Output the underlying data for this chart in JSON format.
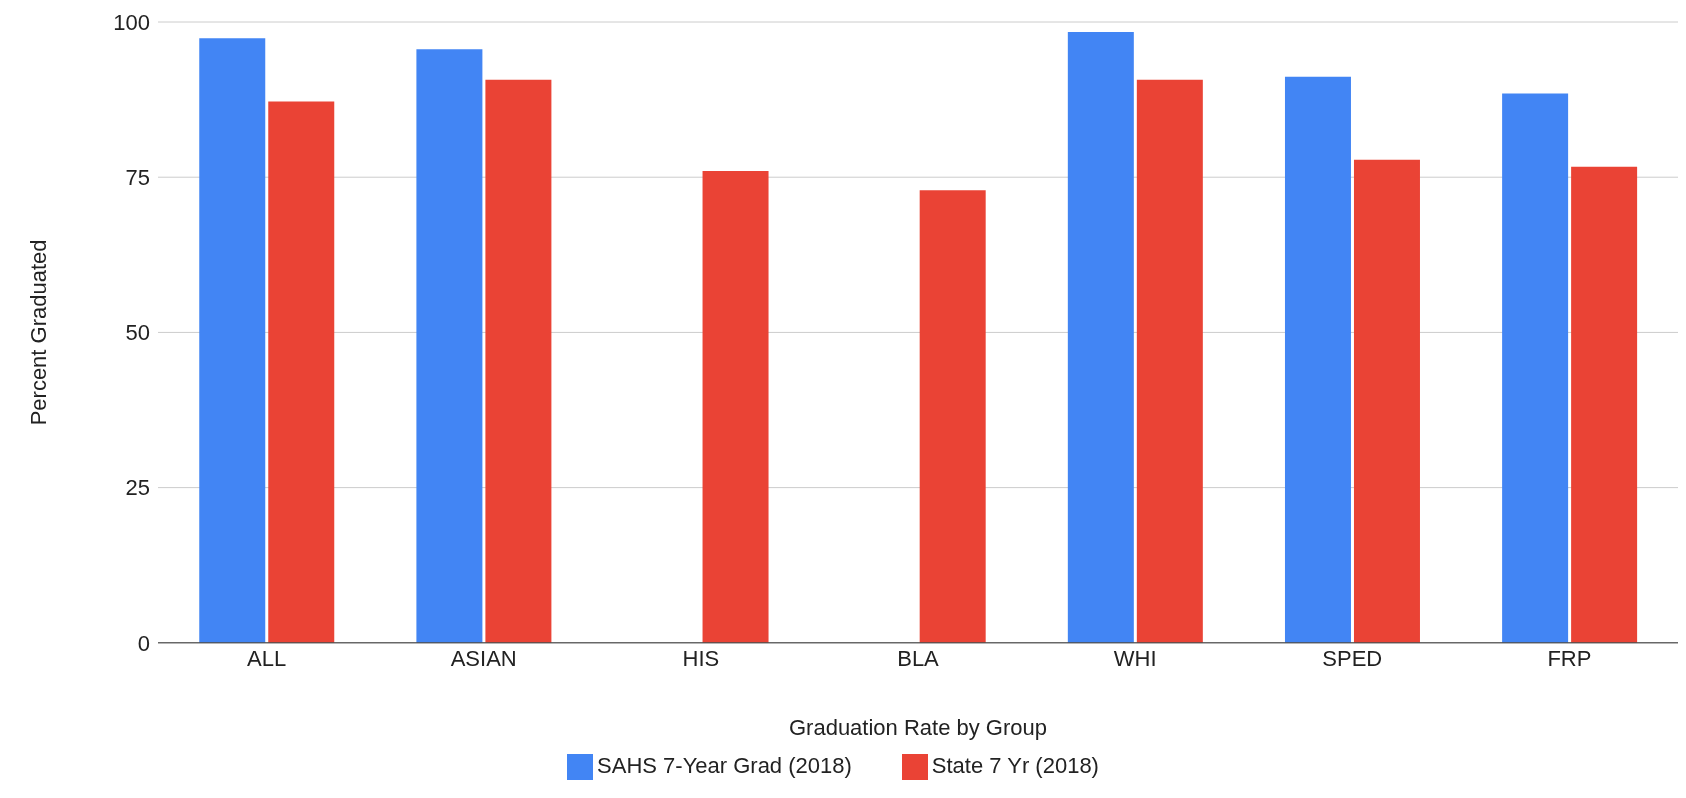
{
  "chart_data": {
    "type": "bar",
    "xlabel": "Graduation Rate by Group",
    "ylabel": "Percent Graduated",
    "categories": [
      "ALL",
      "ASIAN",
      "HIS",
      "BLA",
      "WHI",
      "SPED",
      "FRP"
    ],
    "series": [
      {
        "name": "SAHS 7-Year Grad (2018)",
        "color": "#4285f4",
        "values": [
          97.4,
          95.6,
          null,
          null,
          98.4,
          91.2,
          88.5
        ]
      },
      {
        "name": "State 7 Yr (2018)",
        "color": "#ea4335",
        "values": [
          87.2,
          90.7,
          76.0,
          72.9,
          90.7,
          77.8,
          76.7
        ]
      }
    ],
    "ylim": [
      0,
      100
    ],
    "yticks": [
      0,
      25,
      50,
      75,
      100
    ],
    "grid": "y",
    "legend": "bottom"
  }
}
